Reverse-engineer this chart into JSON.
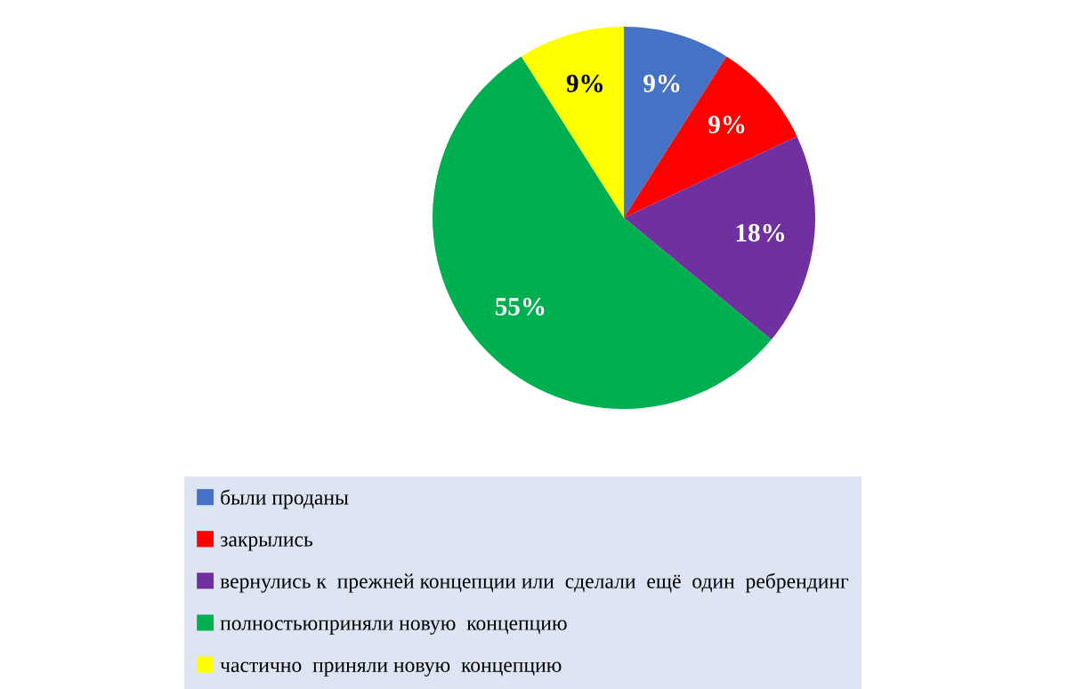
{
  "chart_data": {
    "type": "pie",
    "categories": [
      "были проданы",
      "закрылись",
      "вернулись к  прежней концепции или  сделали  ещё  один  ребрендинг",
      "полностьюприняли новую  концепцию",
      "частично  приняли новую  концепцию"
    ],
    "values": [
      9,
      9,
      18,
      55,
      9
    ],
    "colors": [
      "#4472c4",
      "#ff0000",
      "#7030a0",
      "#00b050",
      "#ffff00"
    ],
    "value_labels": [
      "9%",
      "9%",
      "18%",
      "55%",
      "9%"
    ],
    "legend": "bottom"
  }
}
